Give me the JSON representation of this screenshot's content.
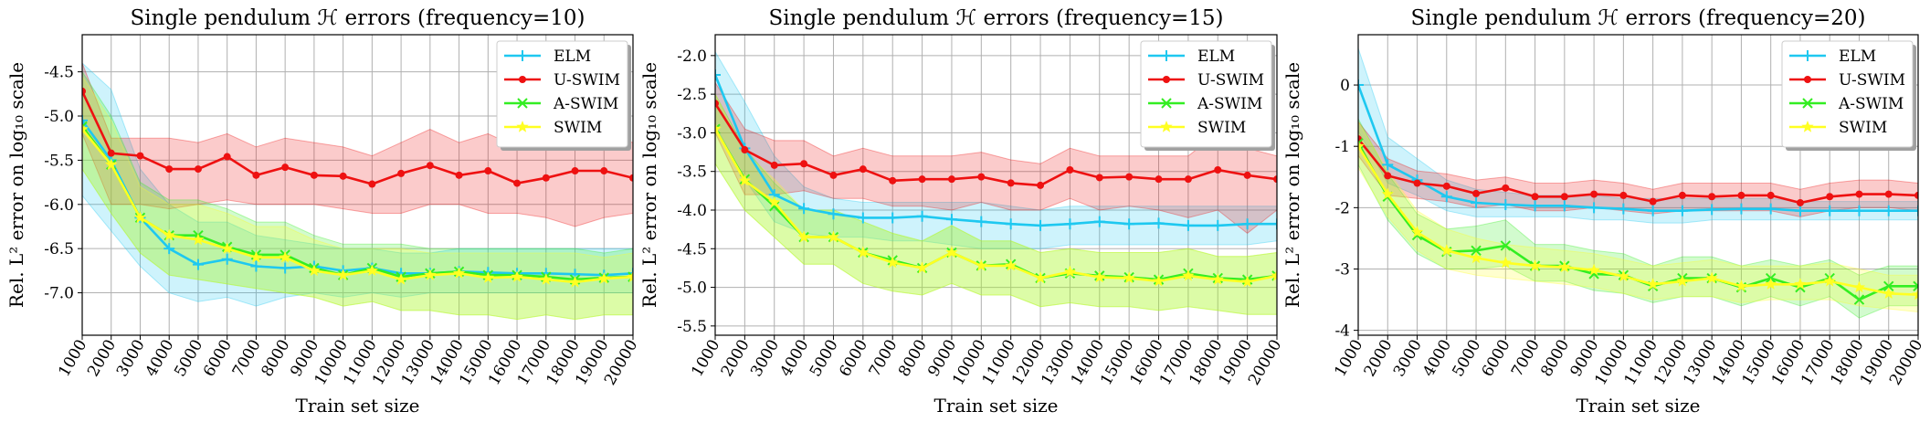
{
  "figure": {
    "xlabel": "Train set size",
    "ylabel": "Rel. L² error on log₁₀ scale"
  },
  "chart_data": [
    {
      "type": "line",
      "title": "Single pendulum ℋ errors (frequency=10)",
      "xlabel": "Train set size",
      "ylabel": "Rel. L² error on log₁₀ scale",
      "x": [
        1000,
        2000,
        3000,
        4000,
        5000,
        6000,
        7000,
        8000,
        9000,
        10000,
        11000,
        12000,
        13000,
        14000,
        15000,
        16000,
        17000,
        18000,
        19000,
        20000
      ],
      "xlim": [
        1000,
        20000
      ],
      "ylim": [
        -7.48,
        -4.08
      ],
      "yticks": [
        -4.5,
        -5.0,
        -5.5,
        -6.0,
        -6.5,
        -7.0
      ],
      "ytick_labels": [
        "-4.5",
        "-5.0",
        "-5.5",
        "-6.0",
        "-6.5",
        "-7.0"
      ],
      "grid": true,
      "legend_position": "top-right",
      "series": [
        {
          "name": "ELM",
          "color": "#1ec8f0",
          "marker": "plus",
          "values": [
            -5.05,
            -5.5,
            -6.15,
            -6.5,
            -6.68,
            -6.62,
            -6.7,
            -6.72,
            -6.7,
            -6.75,
            -6.72,
            -6.78,
            -6.78,
            -6.76,
            -6.77,
            -6.78,
            -6.78,
            -6.79,
            -6.8,
            -6.78
          ],
          "lower": [
            -5.9,
            -6.3,
            -6.7,
            -7.0,
            -7.1,
            -7.05,
            -7.15,
            -7.05,
            -7.0,
            -7.05,
            -7.0,
            -7.05,
            -7.0,
            -7.0,
            -7.0,
            -7.0,
            -7.0,
            -7.0,
            -7.0,
            -7.0
          ],
          "upper": [
            -4.4,
            -4.7,
            -5.6,
            -6.0,
            -6.2,
            -6.2,
            -6.35,
            -6.4,
            -6.45,
            -6.5,
            -6.5,
            -6.55,
            -6.55,
            -6.5,
            -6.5,
            -6.5,
            -6.5,
            -6.5,
            -6.5,
            -6.5
          ]
        },
        {
          "name": "U-SWIM",
          "color": "#ee1111",
          "marker": "dot",
          "values": [
            -4.72,
            -5.42,
            -5.45,
            -5.6,
            -5.6,
            -5.46,
            -5.67,
            -5.58,
            -5.67,
            -5.68,
            -5.77,
            -5.65,
            -5.56,
            -5.67,
            -5.62,
            -5.76,
            -5.7,
            -5.62,
            -5.62,
            -5.7
          ],
          "lower": [
            -5.2,
            -6.0,
            -6.0,
            -6.05,
            -6.0,
            -5.95,
            -6.0,
            -6.0,
            -6.0,
            -6.05,
            -6.1,
            -6.1,
            -6.0,
            -6.0,
            -6.1,
            -6.1,
            -6.15,
            -6.25,
            -6.15,
            -6.1
          ],
          "upper": [
            -4.4,
            -5.25,
            -5.25,
            -5.25,
            -5.3,
            -5.2,
            -5.35,
            -5.25,
            -5.3,
            -5.35,
            -5.45,
            -5.3,
            -5.15,
            -5.3,
            -5.2,
            -5.35,
            -5.3,
            -5.1,
            -5.2,
            -5.3
          ]
        },
        {
          "name": "A-SWIM",
          "color": "#33ee22",
          "marker": "x",
          "values": [
            -5.12,
            -5.55,
            -6.15,
            -6.35,
            -6.35,
            -6.48,
            -6.57,
            -6.57,
            -6.72,
            -6.8,
            -6.72,
            -6.82,
            -6.78,
            -6.76,
            -6.8,
            -6.8,
            -6.82,
            -6.85,
            -6.83,
            -6.82
          ],
          "lower": [
            -5.6,
            -6.1,
            -6.55,
            -6.8,
            -6.85,
            -6.9,
            -6.95,
            -7.0,
            -7.05,
            -7.15,
            -7.1,
            -7.2,
            -7.2,
            -7.25,
            -7.25,
            -7.3,
            -7.25,
            -7.3,
            -7.25,
            -7.25
          ],
          "upper": [
            -4.5,
            -5.0,
            -5.75,
            -5.95,
            -5.95,
            -6.05,
            -6.2,
            -6.2,
            -6.35,
            -6.45,
            -6.45,
            -6.45,
            -6.5,
            -6.5,
            -6.5,
            -6.5,
            -6.5,
            -6.5,
            -6.55,
            -6.5
          ]
        },
        {
          "name": "SWIM",
          "color": "#ffff22",
          "marker": "star",
          "values": [
            -5.15,
            -5.55,
            -6.15,
            -6.35,
            -6.4,
            -6.5,
            -6.6,
            -6.6,
            -6.75,
            -6.8,
            -6.75,
            -6.85,
            -6.8,
            -6.78,
            -6.83,
            -6.82,
            -6.85,
            -6.88,
            -6.84,
            -6.82
          ],
          "lower": [
            -5.6,
            -6.1,
            -6.55,
            -6.8,
            -6.85,
            -6.9,
            -6.95,
            -7.0,
            -7.05,
            -7.15,
            -7.1,
            -7.2,
            -7.2,
            -7.25,
            -7.25,
            -7.3,
            -7.25,
            -7.3,
            -7.25,
            -7.25
          ],
          "upper": [
            -4.55,
            -5.05,
            -5.8,
            -6.0,
            -6.0,
            -6.1,
            -6.25,
            -6.25,
            -6.4,
            -6.5,
            -6.5,
            -6.5,
            -6.55,
            -6.55,
            -6.55,
            -6.55,
            -6.55,
            -6.55,
            -6.6,
            -6.55
          ]
        }
      ]
    },
    {
      "type": "line",
      "title": "Single pendulum ℋ errors (frequency=15)",
      "xlabel": "Train set size",
      "ylabel": "Rel. L² error on log₁₀ scale",
      "x": [
        1000,
        2000,
        3000,
        4000,
        5000,
        6000,
        7000,
        8000,
        9000,
        10000,
        11000,
        12000,
        13000,
        14000,
        15000,
        16000,
        17000,
        18000,
        19000,
        20000
      ],
      "xlim": [
        1000,
        20000
      ],
      "ylim": [
        -5.62,
        -1.73
      ],
      "yticks": [
        -2.0,
        -2.5,
        -3.0,
        -3.5,
        -4.0,
        -4.5,
        -5.0,
        -5.5
      ],
      "ytick_labels": [
        "-2.0",
        "-2.5",
        "-3.0",
        "-3.5",
        "-4.0",
        "-4.5",
        "-5.0",
        "-5.5"
      ],
      "grid": true,
      "legend_position": "top-right",
      "series": [
        {
          "name": "ELM",
          "color": "#1ec8f0",
          "marker": "plus",
          "values": [
            -2.25,
            -3.2,
            -3.8,
            -3.98,
            -4.05,
            -4.1,
            -4.1,
            -4.08,
            -4.12,
            -4.15,
            -4.18,
            -4.2,
            -4.18,
            -4.15,
            -4.18,
            -4.17,
            -4.2,
            -4.2,
            -4.18,
            -4.18
          ],
          "lower": [
            -2.9,
            -3.6,
            -4.15,
            -4.3,
            -4.35,
            -4.35,
            -4.4,
            -4.4,
            -4.45,
            -4.5,
            -4.5,
            -4.5,
            -4.45,
            -4.45,
            -4.45,
            -4.45,
            -4.45,
            -4.45,
            -4.45,
            -4.4
          ],
          "upper": [
            -1.95,
            -2.6,
            -3.3,
            -3.7,
            -3.85,
            -3.9,
            -3.9,
            -3.9,
            -3.9,
            -3.9,
            -3.95,
            -4.0,
            -3.95,
            -3.95,
            -3.95,
            -3.95,
            -3.95,
            -3.95,
            -3.95,
            -3.95
          ]
        },
        {
          "name": "U-SWIM",
          "color": "#ee1111",
          "marker": "dot",
          "values": [
            -2.62,
            -3.22,
            -3.42,
            -3.4,
            -3.55,
            -3.47,
            -3.62,
            -3.6,
            -3.6,
            -3.57,
            -3.65,
            -3.68,
            -3.48,
            -3.58,
            -3.57,
            -3.6,
            -3.6,
            -3.48,
            -3.55,
            -3.6
          ],
          "lower": [
            -3.0,
            -3.8,
            -3.8,
            -3.75,
            -3.85,
            -3.85,
            -3.95,
            -3.95,
            -4.0,
            -3.9,
            -4.0,
            -4.0,
            -3.85,
            -4.0,
            -3.95,
            -4.0,
            -4.1,
            -4.0,
            -4.3,
            -4.0
          ],
          "upper": [
            -2.35,
            -2.95,
            -3.1,
            -3.1,
            -3.3,
            -3.2,
            -3.3,
            -3.3,
            -3.3,
            -3.25,
            -3.35,
            -3.4,
            -3.2,
            -3.3,
            -3.3,
            -3.3,
            -3.3,
            -3.0,
            -3.2,
            -3.3
          ]
        },
        {
          "name": "A-SWIM",
          "color": "#33ee22",
          "marker": "x",
          "values": [
            -2.95,
            -3.6,
            -3.95,
            -4.35,
            -4.35,
            -4.55,
            -4.65,
            -4.75,
            -4.55,
            -4.72,
            -4.7,
            -4.88,
            -4.82,
            -4.85,
            -4.87,
            -4.9,
            -4.82,
            -4.88,
            -4.9,
            -4.85
          ],
          "lower": [
            -3.4,
            -4.0,
            -4.35,
            -4.7,
            -4.7,
            -4.95,
            -5.05,
            -5.1,
            -4.95,
            -5.1,
            -5.1,
            -5.25,
            -5.2,
            -5.25,
            -5.25,
            -5.3,
            -5.25,
            -5.3,
            -5.35,
            -5.35
          ],
          "upper": [
            -2.5,
            -3.2,
            -3.65,
            -4.0,
            -4.0,
            -4.15,
            -4.3,
            -4.4,
            -4.2,
            -4.4,
            -4.4,
            -4.55,
            -4.5,
            -4.55,
            -4.55,
            -4.55,
            -4.5,
            -4.6,
            -4.6,
            -4.55
          ]
        },
        {
          "name": "SWIM",
          "color": "#ffff22",
          "marker": "star",
          "values": [
            -2.95,
            -3.62,
            -3.9,
            -4.35,
            -4.35,
            -4.55,
            -4.68,
            -4.75,
            -4.55,
            -4.72,
            -4.72,
            -4.88,
            -4.8,
            -4.87,
            -4.88,
            -4.92,
            -4.85,
            -4.9,
            -4.93,
            -4.85
          ],
          "lower": [
            -3.4,
            -4.0,
            -4.35,
            -4.7,
            -4.7,
            -4.95,
            -5.05,
            -5.1,
            -4.95,
            -5.1,
            -5.1,
            -5.25,
            -5.2,
            -5.25,
            -5.25,
            -5.3,
            -5.25,
            -5.3,
            -5.35,
            -5.35
          ],
          "upper": [
            -2.5,
            -3.25,
            -3.6,
            -4.0,
            -4.0,
            -4.15,
            -4.3,
            -4.4,
            -4.2,
            -4.4,
            -4.4,
            -4.55,
            -4.5,
            -4.55,
            -4.55,
            -4.55,
            -4.5,
            -4.6,
            -4.6,
            -4.55
          ]
        }
      ]
    },
    {
      "type": "line",
      "title": "Single pendulum ℋ errors (frequency=20)",
      "xlabel": "Train set size",
      "ylabel": "Rel. L² error on log₁₀ scale",
      "x": [
        1000,
        2000,
        3000,
        4000,
        5000,
        6000,
        7000,
        8000,
        9000,
        10000,
        11000,
        12000,
        13000,
        14000,
        15000,
        16000,
        17000,
        18000,
        19000,
        20000
      ],
      "xlim": [
        1000,
        20000
      ],
      "ylim": [
        -4.08,
        0.82
      ],
      "yticks": [
        0,
        -1,
        -2,
        -3,
        -4
      ],
      "ytick_labels": [
        "0",
        "-1",
        "-2",
        "-3",
        "-4"
      ],
      "grid": true,
      "legend_position": "top-right",
      "series": [
        {
          "name": "ELM",
          "color": "#1ec8f0",
          "marker": "plus",
          "values": [
            0.0,
            -1.3,
            -1.55,
            -1.82,
            -1.92,
            -1.95,
            -1.97,
            -1.97,
            -2.0,
            -2.02,
            -2.05,
            -2.05,
            -2.03,
            -2.02,
            -2.02,
            -2.05,
            -2.05,
            -2.05,
            -2.05,
            -2.05
          ],
          "lower": [
            -0.75,
            -1.6,
            -1.8,
            -2.05,
            -2.15,
            -2.15,
            -2.15,
            -2.15,
            -2.2,
            -2.2,
            -2.25,
            -2.25,
            -2.2,
            -2.2,
            -2.2,
            -2.2,
            -2.2,
            -2.2,
            -2.2,
            -2.2
          ],
          "upper": [
            0.6,
            -0.85,
            -1.2,
            -1.55,
            -1.7,
            -1.75,
            -1.8,
            -1.8,
            -1.8,
            -1.85,
            -1.85,
            -1.85,
            -1.85,
            -1.85,
            -1.85,
            -1.9,
            -1.9,
            -1.9,
            -1.9,
            -1.9
          ]
        },
        {
          "name": "U-SWIM",
          "color": "#ee1111",
          "marker": "dot",
          "values": [
            -0.88,
            -1.48,
            -1.6,
            -1.65,
            -1.77,
            -1.68,
            -1.82,
            -1.82,
            -1.78,
            -1.8,
            -1.9,
            -1.8,
            -1.82,
            -1.8,
            -1.8,
            -1.92,
            -1.82,
            -1.78,
            -1.78,
            -1.8
          ],
          "lower": [
            -1.15,
            -1.8,
            -1.85,
            -1.9,
            -2.0,
            -1.95,
            -2.05,
            -2.05,
            -2.0,
            -2.05,
            -2.1,
            -2.05,
            -2.05,
            -2.05,
            -2.05,
            -2.15,
            -2.05,
            -2.0,
            -2.0,
            -2.05
          ],
          "upper": [
            -0.6,
            -1.2,
            -1.4,
            -1.45,
            -1.55,
            -1.5,
            -1.6,
            -1.6,
            -1.55,
            -1.6,
            -1.7,
            -1.6,
            -1.6,
            -1.6,
            -1.6,
            -1.7,
            -1.6,
            -1.55,
            -1.55,
            -1.6
          ]
        },
        {
          "name": "A-SWIM",
          "color": "#33ee22",
          "marker": "x",
          "values": [
            -0.95,
            -1.82,
            -2.45,
            -2.72,
            -2.7,
            -2.62,
            -2.95,
            -2.95,
            -3.08,
            -3.1,
            -3.28,
            -3.15,
            -3.15,
            -3.3,
            -3.15,
            -3.3,
            -3.15,
            -3.5,
            -3.28,
            -3.28
          ],
          "lower": [
            -1.3,
            -2.2,
            -2.75,
            -3.0,
            -3.0,
            -2.95,
            -3.2,
            -3.2,
            -3.35,
            -3.4,
            -3.55,
            -3.45,
            -3.45,
            -3.6,
            -3.45,
            -3.6,
            -3.45,
            -3.8,
            -3.6,
            -3.6
          ],
          "upper": [
            -0.55,
            -1.45,
            -2.1,
            -2.35,
            -2.3,
            -2.2,
            -2.6,
            -2.6,
            -2.7,
            -2.75,
            -2.95,
            -2.8,
            -2.8,
            -2.95,
            -2.85,
            -2.95,
            -2.85,
            -3.1,
            -2.95,
            -2.95
          ]
        },
        {
          "name": "SWIM",
          "color": "#ffff22",
          "marker": "star",
          "values": [
            -1.0,
            -1.78,
            -2.4,
            -2.7,
            -2.82,
            -2.9,
            -2.95,
            -2.97,
            -3.02,
            -3.12,
            -3.25,
            -3.2,
            -3.15,
            -3.28,
            -3.25,
            -3.25,
            -3.2,
            -3.3,
            -3.4,
            -3.42
          ],
          "lower": [
            -1.35,
            -2.15,
            -2.7,
            -3.0,
            -3.1,
            -3.15,
            -3.2,
            -3.25,
            -3.3,
            -3.4,
            -3.5,
            -3.45,
            -3.45,
            -3.55,
            -3.5,
            -3.5,
            -3.5,
            -3.6,
            -3.65,
            -3.7
          ],
          "upper": [
            -0.6,
            -1.4,
            -2.05,
            -2.35,
            -2.5,
            -2.6,
            -2.65,
            -2.7,
            -2.75,
            -2.85,
            -2.95,
            -2.9,
            -2.85,
            -2.95,
            -2.95,
            -2.95,
            -2.9,
            -3.0,
            -3.1,
            -3.1
          ]
        }
      ]
    }
  ]
}
